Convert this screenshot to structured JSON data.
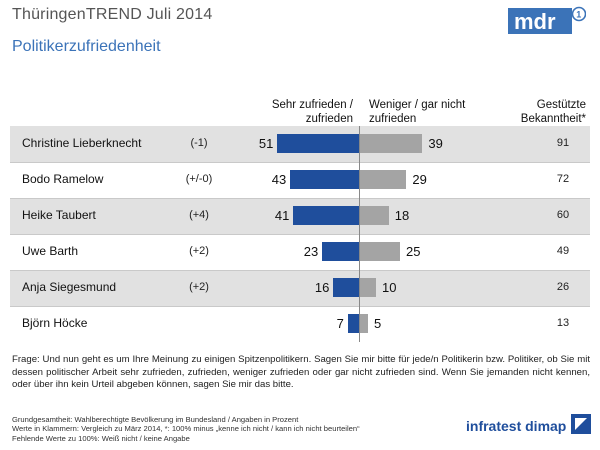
{
  "header": {
    "title": "ThüringenTREND Juli 2014",
    "subtitle": "Politikerzufriedenheit",
    "logo_text": "mdr"
  },
  "columns": {
    "satisfied": "Sehr zufrieden / zufrieden",
    "dissatisfied": "Weniger / gar nicht zufrieden",
    "awareness": "Gestützte Bekanntheit*"
  },
  "chart_data": {
    "type": "bar",
    "title": "Politikerzufriedenheit",
    "categories": [
      "Christine Lieberknecht",
      "Bodo Ramelow",
      "Heike Taubert",
      "Uwe Barth",
      "Anja Siegesmund",
      "Björn Höcke"
    ],
    "changes": [
      "(-1)",
      "(+/-0)",
      "(+4)",
      "(+2)",
      "(+2)",
      ""
    ],
    "series": [
      {
        "name": "Sehr zufrieden / zufrieden",
        "values": [
          51,
          43,
          41,
          23,
          16,
          7
        ],
        "color": "#1f4e9c"
      },
      {
        "name": "Weniger / gar nicht zufrieden",
        "values": [
          39,
          29,
          18,
          25,
          10,
          5
        ],
        "color": "#a4a4a4"
      }
    ],
    "awareness": [
      91,
      72,
      60,
      49,
      26,
      13
    ],
    "unit": "Prozent"
  },
  "footer": {
    "question": "Frage: Und nun geht es um Ihre Meinung zu einigen Spitzenpolitikern. Sagen Sie mir bitte für jede/n Politikerin bzw. Politiker, ob Sie mit dessen politischer Arbeit sehr zufrieden, zufrieden, weniger zufrieden oder gar nicht zufrieden sind. Wenn Sie jemanden nicht kennen, oder über ihn kein Urteil abgeben können, sagen Sie mir das bitte.",
    "line1": "Grundgesamtheit: Wahlberechtigte Bevölkerung im Bundesland / Angaben in Prozent",
    "line2": "Werte in Klammern: Vergleich zu März 2014, *: 100% minus „kenne ich nicht / kann ich nicht beurteilen“",
    "line3": "Fehlende Werte zu 100%: Weiß nicht / keine Angabe",
    "brand": "infratest dimap"
  }
}
